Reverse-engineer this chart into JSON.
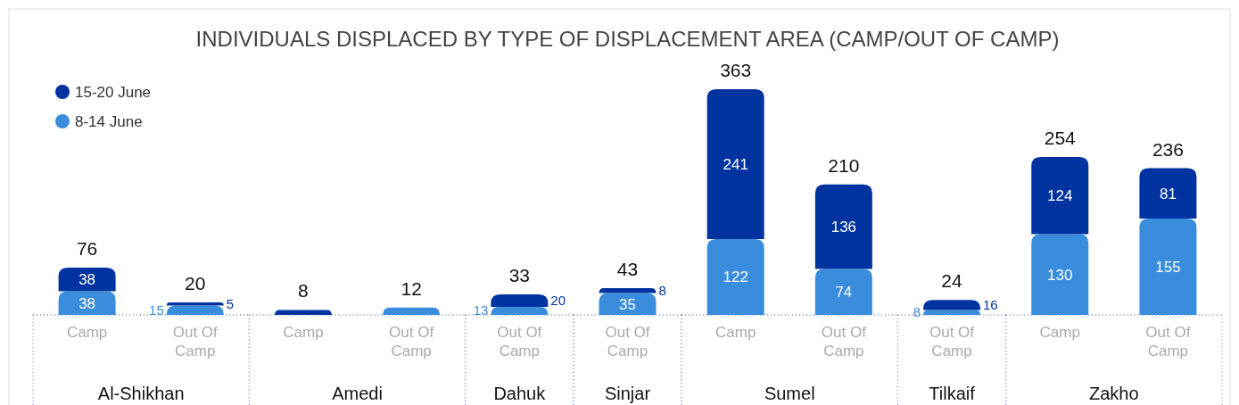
{
  "chart_data": [
    {
      "type": "bar",
      "stacked": true,
      "title": "INDIVIDUALS DISPLACED BY TYPE OF DISPLACEMENT AREA (CAMP/OUT OF CAMP)",
      "legend": "top left",
      "xlabel": "Al-Shikhan",
      "categories": [
        "Camp",
        "Out Of Camp"
      ],
      "series": [
        {
          "name": "8-14 June",
          "color": "#3a8ddd",
          "values": [
            38,
            15
          ],
          "value_labels": [
            "38",
            "15"
          ]
        },
        {
          "name": "15-20 June",
          "color": "#0033a0",
          "values": [
            38,
            5
          ],
          "value_labels": [
            "38",
            "5"
          ]
        }
      ],
      "totals": [
        "76",
        "20"
      ]
    },
    {
      "type": "bar",
      "stacked": true,
      "xlabel": "Amedi",
      "categories": [
        "Camp",
        "Out Of Camp"
      ],
      "series": [
        {
          "color": "#3a8ddd",
          "values": [
            null,
            12
          ],
          "value_labels": [
            null,
            "12"
          ]
        },
        {
          "color": "#0033a0",
          "values": [
            8,
            null
          ],
          "value_labels": [
            "8",
            null
          ]
        }
      ]
    },
    {
      "type": "bar",
      "stacked": true,
      "xlabel": "Dahuk",
      "categories": [
        "Out Of Camp"
      ],
      "series": [
        {
          "color": "#3a8ddd",
          "values": [
            13
          ],
          "value_labels": [
            "13"
          ]
        },
        {
          "color": "#0033a0",
          "values": [
            20
          ],
          "value_labels": [
            "20"
          ]
        }
      ],
      "totals": [
        "33"
      ]
    },
    {
      "type": "bar",
      "stacked": true,
      "xlabel": "Sinjar",
      "categories": [
        "Out Of Camp"
      ],
      "series": [
        {
          "color": "#3a8ddd",
          "values": [
            35
          ],
          "value_labels": [
            "35"
          ]
        },
        {
          "color": "#0033a0",
          "values": [
            8
          ],
          "value_labels": [
            "8"
          ]
        }
      ],
      "totals": [
        "43"
      ]
    },
    {
      "type": "bar",
      "stacked": true,
      "xlabel": "Sumel",
      "categories": [
        "Camp",
        "Out Of Camp"
      ],
      "series": [
        {
          "color": "#3a8ddd",
          "values": [
            122,
            74
          ],
          "value_labels": [
            "122",
            "74"
          ]
        },
        {
          "color": "#0033a0",
          "values": [
            241,
            136
          ],
          "value_labels": [
            "241",
            "136"
          ]
        }
      ],
      "totals": [
        "363",
        "210"
      ]
    },
    {
      "type": "bar",
      "stacked": true,
      "xlabel": "Tilkaif",
      "categories": [
        "Out Of Camp"
      ],
      "series": [
        {
          "color": "#3a8ddd",
          "values": [
            8
          ],
          "value_labels": [
            "8"
          ]
        },
        {
          "color": "#0033a0",
          "values": [
            16
          ],
          "value_labels": [
            "16"
          ]
        }
      ],
      "totals": [
        "24"
      ]
    },
    {
      "type": "bar",
      "stacked": true,
      "xlabel": "Zakho",
      "categories": [
        "Camp",
        "Out Of Camp"
      ],
      "series": [
        {
          "color": "#3a8ddd",
          "values": [
            130,
            155
          ],
          "value_labels": [
            "130",
            "155"
          ]
        },
        {
          "color": "#0033a0",
          "values": [
            124,
            81
          ],
          "value_labels": [
            "124",
            "81"
          ]
        }
      ],
      "totals": [
        "254",
        "236"
      ]
    }
  ]
}
